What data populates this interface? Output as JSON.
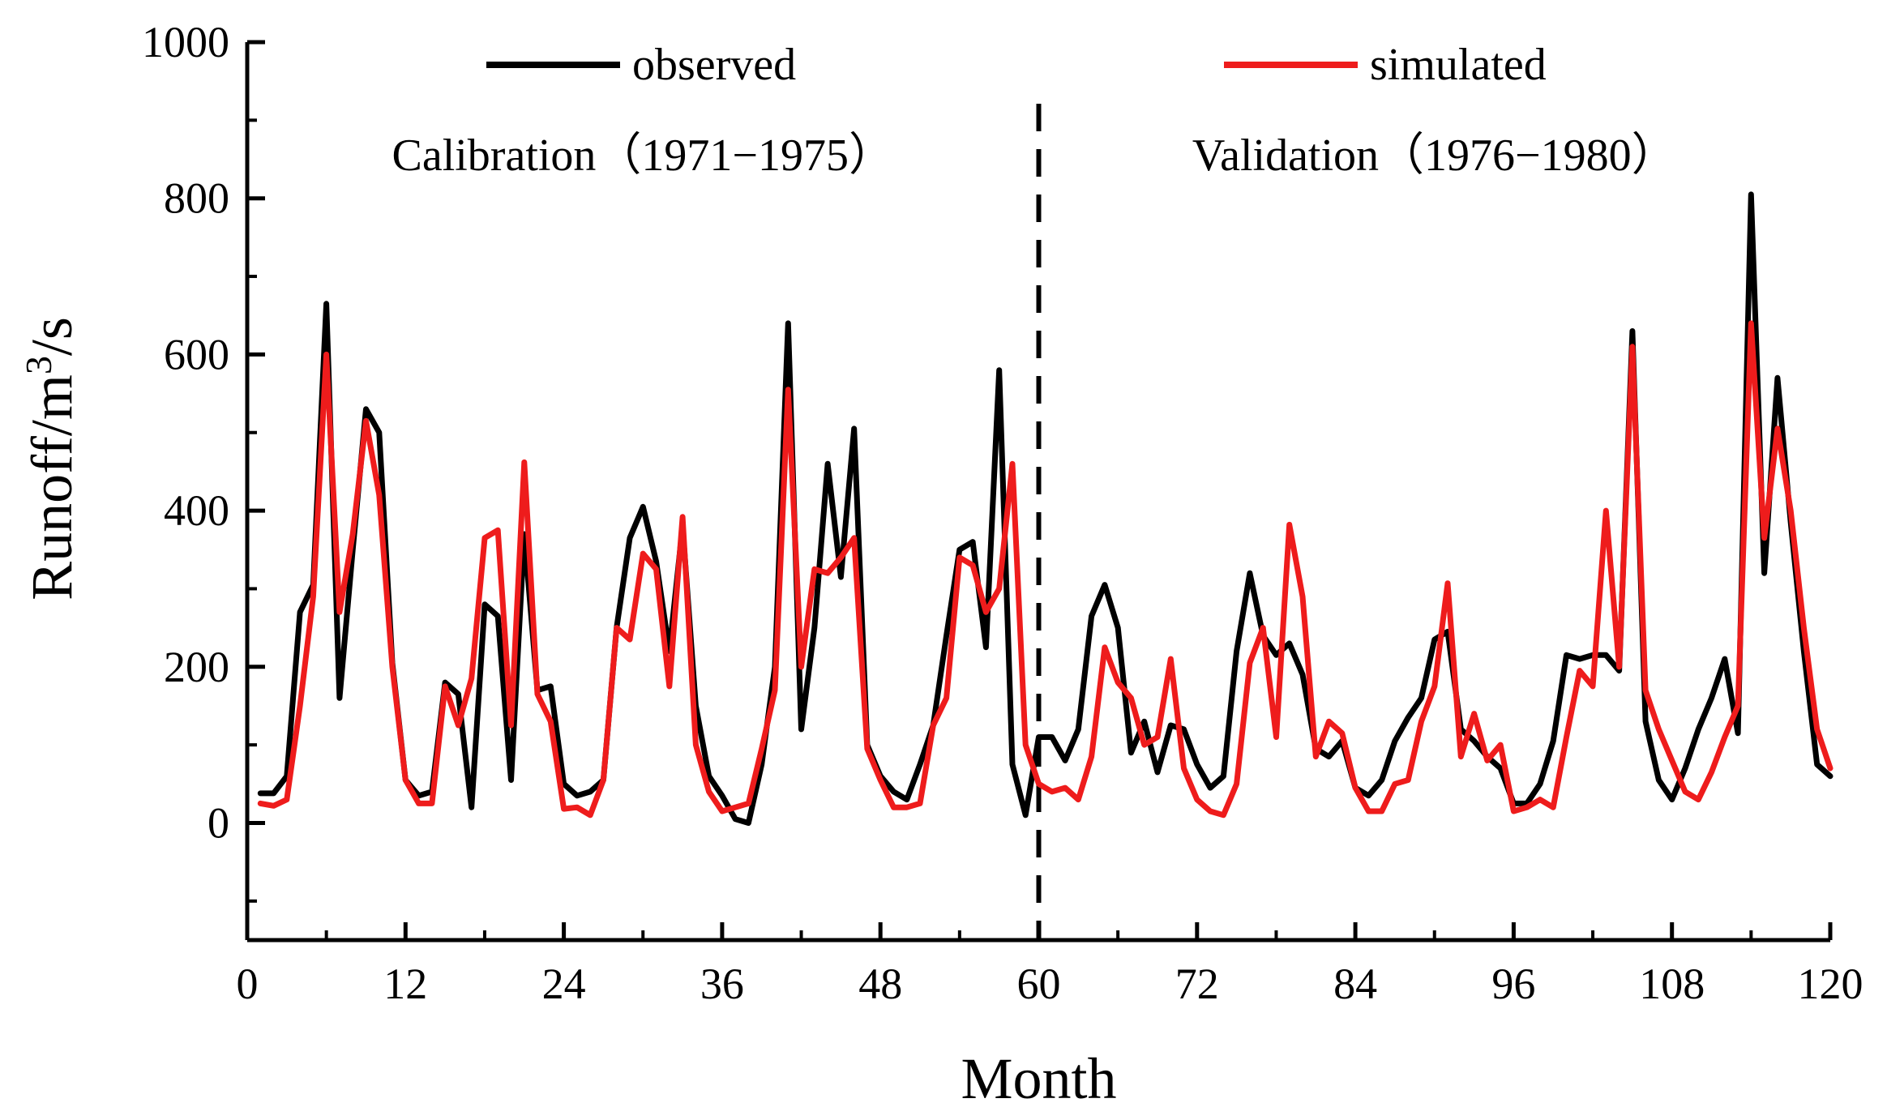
{
  "chart_data": {
    "type": "line",
    "xlabel": "Month",
    "ylabel_main": "Runoff/m",
    "ylabel_sup": "3",
    "ylabel_tail": "/s",
    "xlim": [
      0,
      120
    ],
    "ylim": [
      -150,
      1000
    ],
    "xticks": [
      0,
      12,
      24,
      36,
      48,
      60,
      72,
      84,
      96,
      108,
      120
    ],
    "yticks": [
      0,
      200,
      400,
      600,
      800,
      1000
    ],
    "grid": false,
    "legend_placement": "top",
    "divider_x": 60,
    "annotations": [
      {
        "text": "Calibration（1971−1975）",
        "x": 30,
        "y": 860
      },
      {
        "text": "Validation（1976−1980）",
        "x": 90,
        "y": 860
      }
    ],
    "x": [
      1,
      2,
      3,
      4,
      5,
      6,
      7,
      8,
      9,
      10,
      11,
      12,
      13,
      14,
      15,
      16,
      17,
      18,
      19,
      20,
      21,
      22,
      23,
      24,
      25,
      26,
      27,
      28,
      29,
      30,
      31,
      32,
      33,
      34,
      35,
      36,
      37,
      38,
      39,
      40,
      41,
      42,
      43,
      44,
      45,
      46,
      47,
      48,
      49,
      50,
      51,
      52,
      53,
      54,
      55,
      56,
      57,
      58,
      59,
      60,
      61,
      62,
      63,
      64,
      65,
      66,
      67,
      68,
      69,
      70,
      71,
      72,
      73,
      74,
      75,
      76,
      77,
      78,
      79,
      80,
      81,
      82,
      83,
      84,
      85,
      86,
      87,
      88,
      89,
      90,
      91,
      92,
      93,
      94,
      95,
      96,
      97,
      98,
      99,
      100,
      101,
      102,
      103,
      104,
      105,
      106,
      107,
      108,
      109,
      110,
      111,
      112,
      113,
      114,
      115,
      116,
      117,
      118,
      119,
      120
    ],
    "series": [
      {
        "name": "observed",
        "color": "#000000",
        "values": [
          38,
          38,
          60,
          270,
          305,
          665,
          160,
          350,
          530,
          500,
          205,
          55,
          35,
          40,
          180,
          165,
          20,
          280,
          265,
          55,
          370,
          170,
          175,
          50,
          35,
          40,
          55,
          250,
          365,
          405,
          335,
          220,
          380,
          150,
          60,
          35,
          5,
          0,
          75,
          200,
          640,
          120,
          250,
          460,
          315,
          505,
          100,
          60,
          40,
          30,
          75,
          125,
          240,
          350,
          360,
          225,
          580,
          75,
          10,
          110,
          110,
          80,
          120,
          265,
          305,
          250,
          90,
          130,
          65,
          125,
          120,
          75,
          45,
          60,
          220,
          320,
          240,
          215,
          230,
          190,
          95,
          85,
          105,
          45,
          35,
          55,
          105,
          135,
          160,
          235,
          245,
          120,
          105,
          85,
          70,
          25,
          25,
          50,
          105,
          215,
          210,
          215,
          215,
          195,
          630,
          130,
          55,
          30,
          70,
          120,
          160,
          210,
          115,
          805,
          320,
          570,
          385,
          220,
          75,
          60
        ]
      },
      {
        "name": "simulated",
        "color": "#ee1c1c",
        "values": [
          25,
          22,
          30,
          150,
          290,
          600,
          270,
          370,
          515,
          420,
          200,
          55,
          25,
          25,
          175,
          125,
          185,
          365,
          375,
          125,
          462,
          165,
          130,
          18,
          20,
          10,
          55,
          250,
          235,
          345,
          325,
          175,
          392,
          100,
          40,
          15,
          20,
          25,
          95,
          170,
          555,
          200,
          325,
          320,
          340,
          365,
          95,
          55,
          20,
          20,
          25,
          125,
          160,
          340,
          330,
          270,
          300,
          460,
          100,
          50,
          40,
          45,
          30,
          85,
          225,
          180,
          160,
          100,
          110,
          210,
          70,
          30,
          15,
          10,
          50,
          205,
          250,
          110,
          382,
          290,
          85,
          130,
          115,
          45,
          15,
          15,
          50,
          55,
          130,
          175,
          307,
          85,
          140,
          80,
          100,
          15,
          20,
          30,
          20,
          110,
          195,
          175,
          400,
          200,
          610,
          170,
          120,
          80,
          40,
          30,
          65,
          110,
          150,
          640,
          365,
          505,
          400,
          250,
          120,
          70
        ]
      }
    ]
  }
}
